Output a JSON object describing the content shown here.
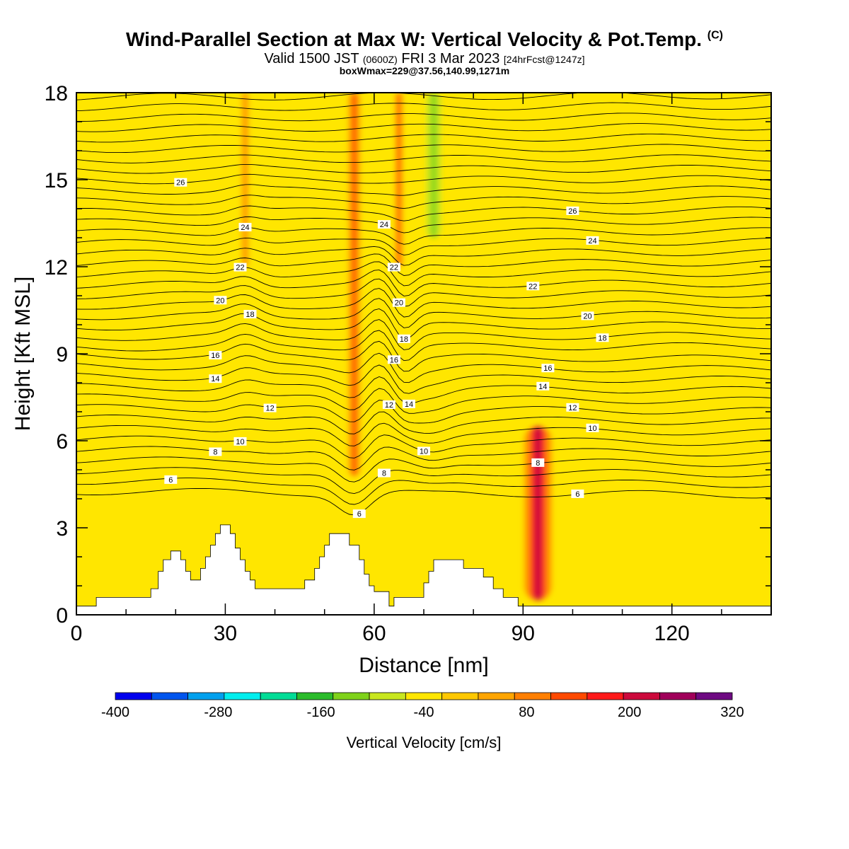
{
  "header": {
    "title": "Wind-Parallel Section at Max W: Vertical Velocity & Pot.Temp.",
    "copyright": "(C)",
    "valid_main": "Valid 1500 JST",
    "valid_utc": "(0600Z)",
    "valid_date": "FRI 3 Mar 2023",
    "forecast": "[24hrFcst@1247z]",
    "box_info": "boxWmax=229@37.56,140.99,1271m"
  },
  "chart_data": {
    "type": "heatmap",
    "title": "Wind-Parallel Section at Max W: Vertical Velocity & Pot.Temp.",
    "xlabel": "Distance [nm]",
    "ylabel": "Height [Kft MSL]",
    "xlim": [
      0,
      140
    ],
    "ylim": [
      0,
      18
    ],
    "xticks": [
      "0",
      "30",
      "60",
      "90",
      "120"
    ],
    "xtick_values": [
      0,
      30,
      60,
      90,
      120
    ],
    "yticks": [
      "0",
      "3",
      "6",
      "9",
      "12",
      "15",
      "18"
    ],
    "ytick_values": [
      0,
      3,
      6,
      9,
      12,
      15,
      18
    ],
    "colorbar": {
      "label": "Vertical Velocity [cm/s]",
      "labels": [
        "-400",
        "-280",
        "-160",
        "-40",
        "80",
        "200",
        "320"
      ],
      "label_values": [
        -400,
        -280,
        -160,
        -40,
        80,
        200,
        320
      ],
      "min": -400,
      "max": 320,
      "colors": [
        "#0000ee",
        "#0055ee",
        "#00a0ee",
        "#00eeee",
        "#00dc96",
        "#2bbc2b",
        "#7fd21a",
        "#c8e61e",
        "#ffe600",
        "#ffc800",
        "#ffa500",
        "#ff7f00",
        "#ff4a00",
        "#ff1a1a",
        "#cc0a3c",
        "#a0005a",
        "#6e0a82"
      ]
    },
    "background_color": "#ffe600",
    "velocity_features": [
      {
        "kind": "updraft",
        "x": 93,
        "ybot": 0.5,
        "ytop": 6.5,
        "halfwidth": 2.8,
        "value": 220
      },
      {
        "kind": "updraft",
        "x": 56,
        "ybot": 4.8,
        "ytop": 18,
        "halfwidth": 1.3,
        "value": 150
      },
      {
        "kind": "updraft",
        "x": 65,
        "ybot": 12,
        "ytop": 18,
        "halfwidth": 0.8,
        "value": 130
      },
      {
        "kind": "updraft",
        "x": 34,
        "ybot": 12,
        "ytop": 18,
        "halfwidth": 0.8,
        "value": 80
      },
      {
        "kind": "downdraft",
        "x": 72,
        "ybot": 13,
        "ytop": 18,
        "halfwidth": 2.0,
        "value": -110
      },
      {
        "kind": "downdraft",
        "x": 31,
        "ybot": 1.5,
        "ytop": 11,
        "halfwidth": 0.9,
        "value": -45
      },
      {
        "kind": "downdraft",
        "x": 52,
        "ybot": 2,
        "ytop": 18,
        "halfwidth": 1.0,
        "value": -45
      },
      {
        "kind": "downdraft",
        "x": 60,
        "ybot": 3,
        "ytop": 18,
        "halfwidth": 0.8,
        "value": -55
      },
      {
        "kind": "downdraft",
        "x": 95,
        "ybot": 14,
        "ytop": 18,
        "halfwidth": 1.0,
        "value": -40
      }
    ],
    "terrain": [
      [
        0,
        0.3
      ],
      [
        4,
        0.3
      ],
      [
        4,
        0.6
      ],
      [
        15,
        0.6
      ],
      [
        15,
        0.9
      ],
      [
        16.5,
        0.9
      ],
      [
        16.5,
        1.5
      ],
      [
        17.5,
        1.5
      ],
      [
        17.5,
        1.9
      ],
      [
        19,
        1.9
      ],
      [
        19,
        2.2
      ],
      [
        21,
        2.2
      ],
      [
        21,
        1.9
      ],
      [
        22,
        1.9
      ],
      [
        22,
        1.5
      ],
      [
        23,
        1.5
      ],
      [
        23,
        1.2
      ],
      [
        25,
        1.2
      ],
      [
        25,
        1.6
      ],
      [
        26,
        1.6
      ],
      [
        26,
        2.0
      ],
      [
        27,
        2.0
      ],
      [
        27,
        2.4
      ],
      [
        28,
        2.4
      ],
      [
        28,
        2.8
      ],
      [
        29,
        2.8
      ],
      [
        29,
        3.1
      ],
      [
        31,
        3.1
      ],
      [
        31,
        2.8
      ],
      [
        32,
        2.8
      ],
      [
        32,
        2.3
      ],
      [
        33,
        2.3
      ],
      [
        33,
        1.9
      ],
      [
        34,
        1.9
      ],
      [
        34,
        1.5
      ],
      [
        35,
        1.5
      ],
      [
        35,
        1.2
      ],
      [
        36,
        1.2
      ],
      [
        36,
        0.9
      ],
      [
        46,
        0.9
      ],
      [
        46,
        1.2
      ],
      [
        48,
        1.2
      ],
      [
        48,
        1.6
      ],
      [
        49,
        1.6
      ],
      [
        49,
        2.0
      ],
      [
        50,
        2.0
      ],
      [
        50,
        2.4
      ],
      [
        51,
        2.4
      ],
      [
        51,
        2.8
      ],
      [
        55,
        2.8
      ],
      [
        55,
        2.4
      ],
      [
        57,
        2.4
      ],
      [
        57,
        1.9
      ],
      [
        58,
        1.9
      ],
      [
        58,
        1.4
      ],
      [
        59,
        1.4
      ],
      [
        59,
        1.0
      ],
      [
        60,
        1.0
      ],
      [
        60,
        0.8
      ],
      [
        63,
        0.8
      ],
      [
        63,
        0.3
      ],
      [
        64,
        0.3
      ],
      [
        64,
        0.6
      ],
      [
        70,
        0.6
      ],
      [
        70,
        1.1
      ],
      [
        71,
        1.1
      ],
      [
        71,
        1.5
      ],
      [
        72,
        1.5
      ],
      [
        72,
        1.9
      ],
      [
        78,
        1.9
      ],
      [
        78,
        1.6
      ],
      [
        82,
        1.6
      ],
      [
        82,
        1.3
      ],
      [
        84,
        1.3
      ],
      [
        84,
        0.9
      ],
      [
        86,
        0.9
      ],
      [
        86,
        0.6
      ],
      [
        89,
        0.6
      ],
      [
        89,
        0.3
      ],
      [
        140,
        0.3
      ]
    ],
    "theta_contours": {
      "levels": [
        4,
        6,
        8,
        10,
        12,
        14,
        16,
        18,
        20,
        22,
        24,
        26
      ],
      "labeled_levels": [
        6,
        8,
        10,
        12,
        14,
        16,
        18,
        20,
        22,
        24,
        26
      ]
    }
  }
}
